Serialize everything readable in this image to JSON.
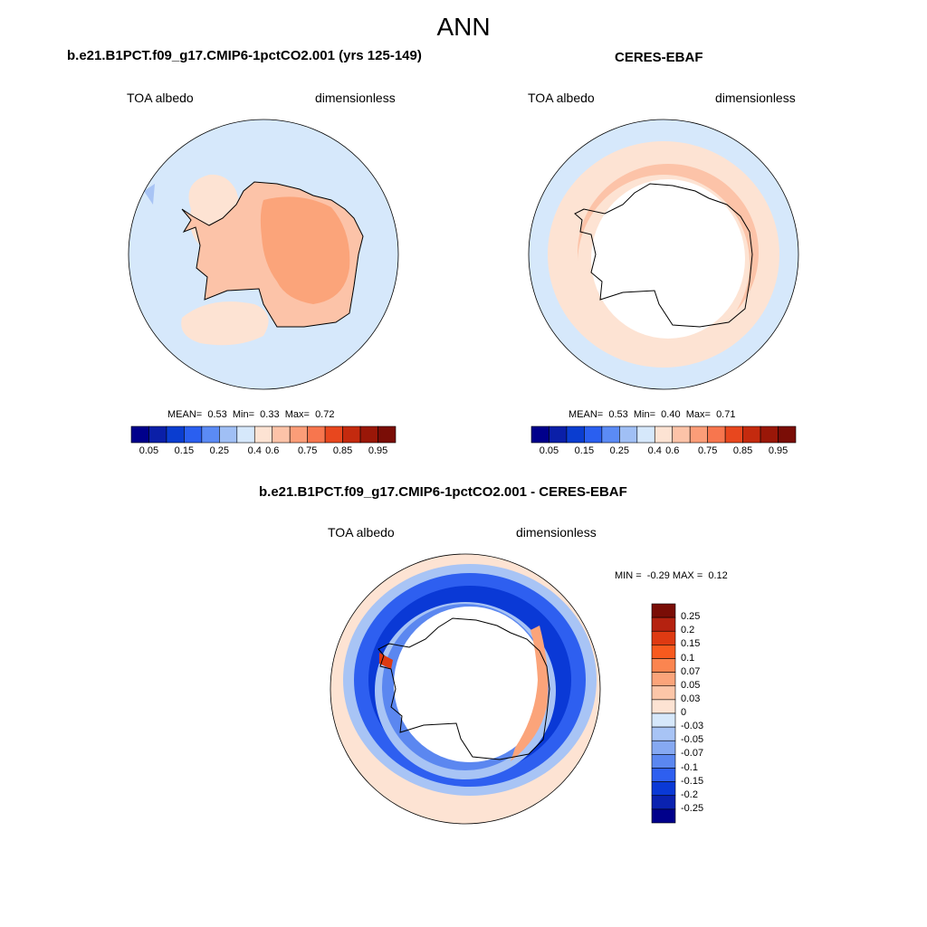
{
  "title": "ANN",
  "panels": {
    "model": {
      "title": "b.e21.B1PCT.f09_g17.CMIP6-1pctCO2.001 (yrs 125-149)",
      "variable": "TOA albedo",
      "units": "dimensionless",
      "stats": {
        "mean": "0.53",
        "min": "0.33",
        "max": "0.72"
      }
    },
    "obs": {
      "title": "CERES-EBAF",
      "variable": "TOA albedo",
      "units": "dimensionless",
      "stats": {
        "mean": "0.53",
        "min": "0.40",
        "max": "0.71"
      }
    },
    "diff": {
      "title": "b.e21.B1PCT.f09_g17.CMIP6-1pctCO2.001 - CERES-EBAF",
      "variable": "TOA albedo",
      "units": "dimensionless",
      "minmax": {
        "min": "-0.29",
        "max": "0.12"
      }
    }
  },
  "labels": {
    "mean": "MEAN=",
    "min": "Min=",
    "max": "Max=",
    "min_caps": "MIN =",
    "max_caps": "MAX ="
  },
  "colorbar_abs": {
    "colors": [
      "#00008b",
      "#0a1fa8",
      "#0a3dd0",
      "#2a5ff0",
      "#5b8bf5",
      "#a0bff5",
      "#d6e8fb",
      "#fde3d3",
      "#fcc3a8",
      "#fb9d78",
      "#f7764e",
      "#e8471e",
      "#c42a0e",
      "#9a1708",
      "#7a0d06"
    ],
    "ticks": [
      "0.05",
      "0.15",
      "0.25",
      "0.4",
      "0.6",
      "0.75",
      "0.85",
      "0.95"
    ]
  },
  "colorbar_diff": {
    "colors": [
      "#7a0d06",
      "#b52210",
      "#de3a12",
      "#f85a1e",
      "#fb8550",
      "#fba47a",
      "#fcc6a8",
      "#fde3d3",
      "#d6e8fb",
      "#a8c4f5",
      "#86a9f2",
      "#5b87f0",
      "#2e5ff0",
      "#0a39d6",
      "#0a22b0",
      "#00008b"
    ],
    "ticks": [
      "0.25",
      "0.2",
      "0.15",
      "0.1",
      "0.07",
      "0.05",
      "0.03",
      "0",
      "-0.03",
      "-0.05",
      "-0.07",
      "-0.1",
      "-0.15",
      "-0.2",
      "-0.25"
    ]
  }
}
